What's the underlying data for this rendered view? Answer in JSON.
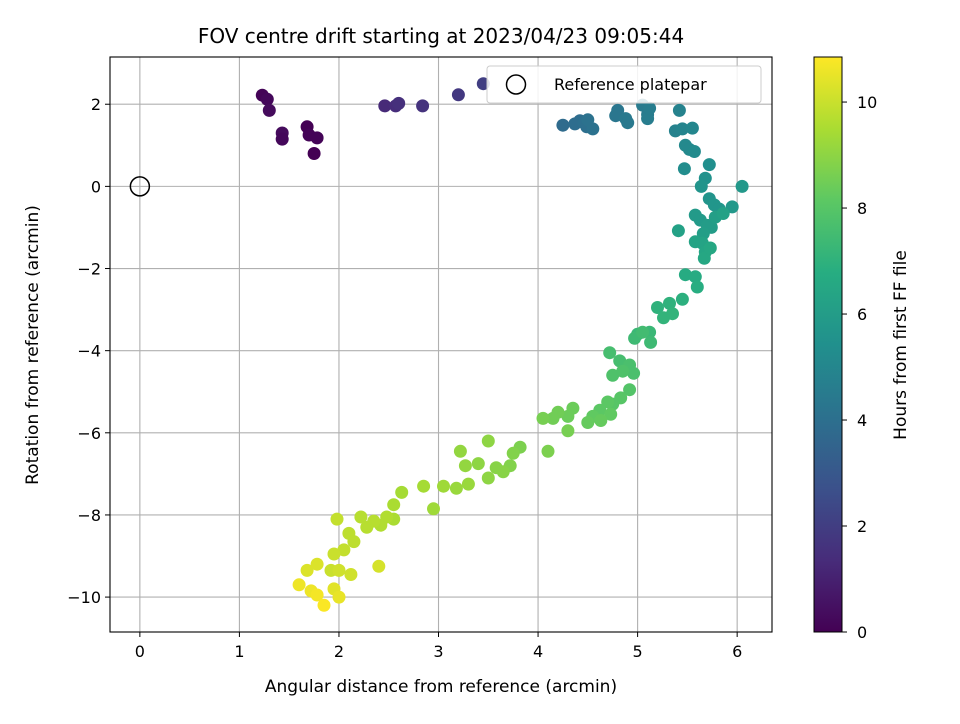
{
  "chart_data": {
    "type": "scatter",
    "title": "FOV centre drift starting at 2023/04/23 09:05:44",
    "xlabel": "Angular distance from reference (arcmin)",
    "ylabel": "Rotation from reference (arcmin)",
    "xlim": [
      -0.3,
      6.35
    ],
    "ylim": [
      -10.85,
      3.15
    ],
    "xticks": [
      0,
      1,
      2,
      3,
      4,
      5,
      6
    ],
    "yticks": [
      -10,
      -8,
      -6,
      -4,
      -2,
      0,
      2
    ],
    "xtick_labels": [
      "0",
      "1",
      "2",
      "3",
      "4",
      "5",
      "6"
    ],
    "ytick_labels": [
      "−10",
      "−8",
      "−6",
      "−4",
      "−2",
      "0",
      "2"
    ],
    "grid": true,
    "colormap": "viridis",
    "colorbar": {
      "label": "Hours from first FF file",
      "range": [
        0,
        10.85
      ],
      "ticks": [
        0,
        2,
        4,
        6,
        8,
        10
      ],
      "tick_labels": [
        "0",
        "2",
        "4",
        "6",
        "8",
        "10"
      ]
    },
    "legend": {
      "placement": "top-right",
      "entries": [
        {
          "label": "Reference platepar",
          "marker": "hollow-circle"
        }
      ]
    },
    "reference_point": {
      "x": 0,
      "y": 0
    },
    "points": [
      {
        "x": 1.23,
        "y": 2.22,
        "c": 0.1
      },
      {
        "x": 1.28,
        "y": 2.12,
        "c": 0.2
      },
      {
        "x": 1.3,
        "y": 1.85,
        "c": 0.3
      },
      {
        "x": 1.43,
        "y": 1.3,
        "c": 0.3
      },
      {
        "x": 1.43,
        "y": 1.15,
        "c": 0.2
      },
      {
        "x": 1.68,
        "y": 1.45,
        "c": 0.0
      },
      {
        "x": 1.7,
        "y": 1.25,
        "c": 0.1
      },
      {
        "x": 1.78,
        "y": 1.18,
        "c": 0.1
      },
      {
        "x": 1.75,
        "y": 0.8,
        "c": 0.0
      },
      {
        "x": 2.46,
        "y": 1.96,
        "c": 1.3
      },
      {
        "x": 2.57,
        "y": 1.96,
        "c": 1.4
      },
      {
        "x": 2.6,
        "y": 2.02,
        "c": 1.5
      },
      {
        "x": 2.84,
        "y": 1.96,
        "c": 1.6
      },
      {
        "x": 3.2,
        "y": 2.23,
        "c": 1.8
      },
      {
        "x": 3.45,
        "y": 2.5,
        "c": 2.0
      },
      {
        "x": 4.25,
        "y": 1.49,
        "c": 3.8
      },
      {
        "x": 4.37,
        "y": 1.52,
        "c": 3.9
      },
      {
        "x": 4.42,
        "y": 1.6,
        "c": 3.9
      },
      {
        "x": 4.46,
        "y": 1.55,
        "c": 4.0
      },
      {
        "x": 4.49,
        "y": 1.45,
        "c": 4.0
      },
      {
        "x": 4.5,
        "y": 1.62,
        "c": 4.1
      },
      {
        "x": 4.55,
        "y": 1.4,
        "c": 4.1
      },
      {
        "x": 4.78,
        "y": 1.72,
        "c": 4.3
      },
      {
        "x": 4.8,
        "y": 1.85,
        "c": 4.3
      },
      {
        "x": 4.88,
        "y": 1.65,
        "c": 4.4
      },
      {
        "x": 4.9,
        "y": 1.55,
        "c": 4.4
      },
      {
        "x": 5.05,
        "y": 1.98,
        "c": 4.5
      },
      {
        "x": 5.1,
        "y": 1.75,
        "c": 4.5
      },
      {
        "x": 5.1,
        "y": 1.65,
        "c": 4.6
      },
      {
        "x": 5.12,
        "y": 1.9,
        "c": 4.6
      },
      {
        "x": 5.38,
        "y": 1.35,
        "c": 4.8
      },
      {
        "x": 5.42,
        "y": 1.85,
        "c": 4.8
      },
      {
        "x": 5.45,
        "y": 1.4,
        "c": 4.9
      },
      {
        "x": 5.55,
        "y": 1.42,
        "c": 5.0
      },
      {
        "x": 5.48,
        "y": 1.0,
        "c": 5.1
      },
      {
        "x": 5.52,
        "y": 0.9,
        "c": 5.1
      },
      {
        "x": 5.57,
        "y": 0.85,
        "c": 5.2
      },
      {
        "x": 5.47,
        "y": 0.43,
        "c": 5.3
      },
      {
        "x": 5.72,
        "y": 0.53,
        "c": 5.4
      },
      {
        "x": 5.68,
        "y": 0.2,
        "c": 5.5
      },
      {
        "x": 5.64,
        "y": 0.0,
        "c": 5.6
      },
      {
        "x": 5.72,
        "y": -0.3,
        "c": 5.6
      },
      {
        "x": 5.77,
        "y": -0.45,
        "c": 5.7
      },
      {
        "x": 5.82,
        "y": -0.55,
        "c": 5.7
      },
      {
        "x": 5.95,
        "y": -0.5,
        "c": 5.8
      },
      {
        "x": 6.05,
        "y": 0.0,
        "c": 5.8
      },
      {
        "x": 5.58,
        "y": -0.7,
        "c": 5.9
      },
      {
        "x": 5.63,
        "y": -0.82,
        "c": 5.9
      },
      {
        "x": 5.7,
        "y": -0.95,
        "c": 6.0
      },
      {
        "x": 5.74,
        "y": -1.0,
        "c": 6.0
      },
      {
        "x": 5.66,
        "y": -1.15,
        "c": 6.1
      },
      {
        "x": 5.78,
        "y": -0.75,
        "c": 6.1
      },
      {
        "x": 5.86,
        "y": -0.66,
        "c": 6.2
      },
      {
        "x": 5.41,
        "y": -1.08,
        "c": 6.2
      },
      {
        "x": 5.58,
        "y": -1.35,
        "c": 6.3
      },
      {
        "x": 5.65,
        "y": -1.38,
        "c": 6.3
      },
      {
        "x": 5.68,
        "y": -1.6,
        "c": 6.4
      },
      {
        "x": 5.67,
        "y": -1.75,
        "c": 6.5
      },
      {
        "x": 5.73,
        "y": -1.5,
        "c": 6.5
      },
      {
        "x": 5.48,
        "y": -2.15,
        "c": 6.7
      },
      {
        "x": 5.58,
        "y": -2.2,
        "c": 6.7
      },
      {
        "x": 5.6,
        "y": -2.45,
        "c": 6.8
      },
      {
        "x": 5.45,
        "y": -2.75,
        "c": 6.9
      },
      {
        "x": 5.32,
        "y": -2.85,
        "c": 7.0
      },
      {
        "x": 5.2,
        "y": -2.95,
        "c": 7.0
      },
      {
        "x": 5.26,
        "y": -3.2,
        "c": 7.1
      },
      {
        "x": 5.35,
        "y": -3.1,
        "c": 7.1
      },
      {
        "x": 5.12,
        "y": -3.55,
        "c": 7.3
      },
      {
        "x": 5.0,
        "y": -3.6,
        "c": 7.3
      },
      {
        "x": 4.97,
        "y": -3.7,
        "c": 7.4
      },
      {
        "x": 5.13,
        "y": -3.8,
        "c": 7.4
      },
      {
        "x": 5.05,
        "y": -3.55,
        "c": 7.5
      },
      {
        "x": 4.72,
        "y": -4.05,
        "c": 7.6
      },
      {
        "x": 4.82,
        "y": -4.25,
        "c": 7.6
      },
      {
        "x": 4.92,
        "y": -4.35,
        "c": 7.7
      },
      {
        "x": 4.96,
        "y": -4.55,
        "c": 7.7
      },
      {
        "x": 4.75,
        "y": -4.6,
        "c": 7.8
      },
      {
        "x": 4.85,
        "y": -4.5,
        "c": 7.8
      },
      {
        "x": 4.92,
        "y": -4.95,
        "c": 7.9
      },
      {
        "x": 4.83,
        "y": -5.15,
        "c": 8.0
      },
      {
        "x": 4.75,
        "y": -5.3,
        "c": 8.0
      },
      {
        "x": 4.7,
        "y": -5.25,
        "c": 8.1
      },
      {
        "x": 4.62,
        "y": -5.45,
        "c": 8.1
      },
      {
        "x": 4.73,
        "y": -5.55,
        "c": 8.2
      },
      {
        "x": 4.55,
        "y": -5.6,
        "c": 8.2
      },
      {
        "x": 4.63,
        "y": -5.7,
        "c": 8.3
      },
      {
        "x": 4.5,
        "y": -5.75,
        "c": 8.3
      },
      {
        "x": 4.35,
        "y": -5.4,
        "c": 8.4
      },
      {
        "x": 4.3,
        "y": -5.6,
        "c": 8.4
      },
      {
        "x": 4.2,
        "y": -5.5,
        "c": 8.5
      },
      {
        "x": 4.15,
        "y": -5.65,
        "c": 8.5
      },
      {
        "x": 4.05,
        "y": -5.65,
        "c": 8.6
      },
      {
        "x": 4.3,
        "y": -5.95,
        "c": 8.6
      },
      {
        "x": 4.1,
        "y": -6.45,
        "c": 8.7
      },
      {
        "x": 3.82,
        "y": -6.35,
        "c": 8.7
      },
      {
        "x": 3.75,
        "y": -6.5,
        "c": 8.8
      },
      {
        "x": 3.72,
        "y": -6.8,
        "c": 8.8
      },
      {
        "x": 3.65,
        "y": -6.95,
        "c": 8.9
      },
      {
        "x": 3.58,
        "y": -6.85,
        "c": 8.9
      },
      {
        "x": 3.5,
        "y": -6.2,
        "c": 9.0
      },
      {
        "x": 3.4,
        "y": -6.75,
        "c": 9.0
      },
      {
        "x": 3.5,
        "y": -7.1,
        "c": 9.0
      },
      {
        "x": 3.27,
        "y": -6.8,
        "c": 9.1
      },
      {
        "x": 3.22,
        "y": -6.45,
        "c": 9.1
      },
      {
        "x": 3.3,
        "y": -7.25,
        "c": 9.2
      },
      {
        "x": 3.18,
        "y": -7.35,
        "c": 9.2
      },
      {
        "x": 3.05,
        "y": -7.3,
        "c": 9.3
      },
      {
        "x": 2.95,
        "y": -7.85,
        "c": 9.3
      },
      {
        "x": 2.85,
        "y": -7.3,
        "c": 9.4
      },
      {
        "x": 2.63,
        "y": -7.45,
        "c": 9.4
      },
      {
        "x": 2.55,
        "y": -7.75,
        "c": 9.5
      },
      {
        "x": 2.55,
        "y": -8.1,
        "c": 9.5
      },
      {
        "x": 2.48,
        "y": -8.05,
        "c": 9.6
      },
      {
        "x": 2.42,
        "y": -8.25,
        "c": 9.6
      },
      {
        "x": 2.35,
        "y": -8.15,
        "c": 9.7
      },
      {
        "x": 2.28,
        "y": -8.3,
        "c": 9.7
      },
      {
        "x": 2.22,
        "y": -8.05,
        "c": 9.7
      },
      {
        "x": 2.1,
        "y": -8.45,
        "c": 9.8
      },
      {
        "x": 2.15,
        "y": -8.65,
        "c": 9.8
      },
      {
        "x": 2.05,
        "y": -8.85,
        "c": 9.9
      },
      {
        "x": 1.98,
        "y": -8.1,
        "c": 9.9
      },
      {
        "x": 1.95,
        "y": -8.95,
        "c": 10.0
      },
      {
        "x": 1.92,
        "y": -9.35,
        "c": 10.0
      },
      {
        "x": 2.0,
        "y": -9.35,
        "c": 10.1
      },
      {
        "x": 2.12,
        "y": -9.45,
        "c": 10.1
      },
      {
        "x": 2.4,
        "y": -9.25,
        "c": 10.2
      },
      {
        "x": 1.78,
        "y": -9.2,
        "c": 10.3
      },
      {
        "x": 1.68,
        "y": -9.35,
        "c": 10.3
      },
      {
        "x": 1.95,
        "y": -9.8,
        "c": 10.4
      },
      {
        "x": 2.0,
        "y": -10.0,
        "c": 10.5
      },
      {
        "x": 1.6,
        "y": -9.7,
        "c": 10.6
      },
      {
        "x": 1.72,
        "y": -9.85,
        "c": 10.6
      },
      {
        "x": 1.78,
        "y": -9.95,
        "c": 10.7
      },
      {
        "x": 1.85,
        "y": -10.2,
        "c": 10.8
      }
    ]
  }
}
